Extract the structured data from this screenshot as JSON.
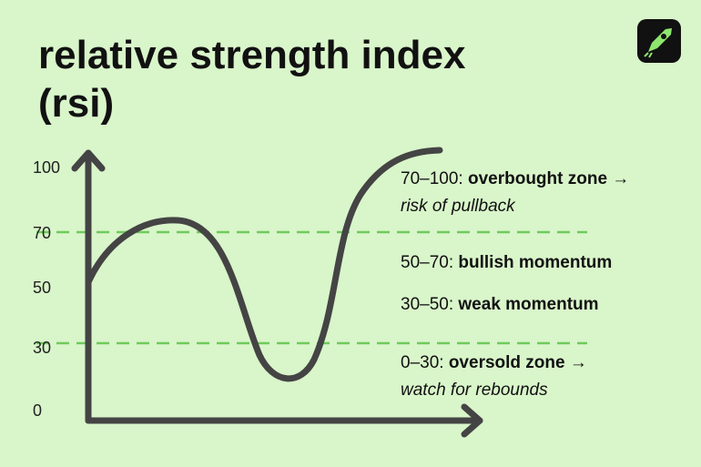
{
  "title": [
    "relative strength index",
    "(rsi)"
  ],
  "axis_labels": [
    "100",
    "70",
    "50",
    "30",
    "0"
  ],
  "zones": [
    {
      "range": "70–100:",
      "name": "overbought zone →",
      "note": "risk of pullback"
    },
    {
      "range": "50–70:",
      "name": "bullish momentum"
    },
    {
      "range": "30–50:",
      "name": "weak momentum"
    },
    {
      "range": "0–30:",
      "name": "oversold zone →",
      "note": "watch for rebounds"
    }
  ]
}
